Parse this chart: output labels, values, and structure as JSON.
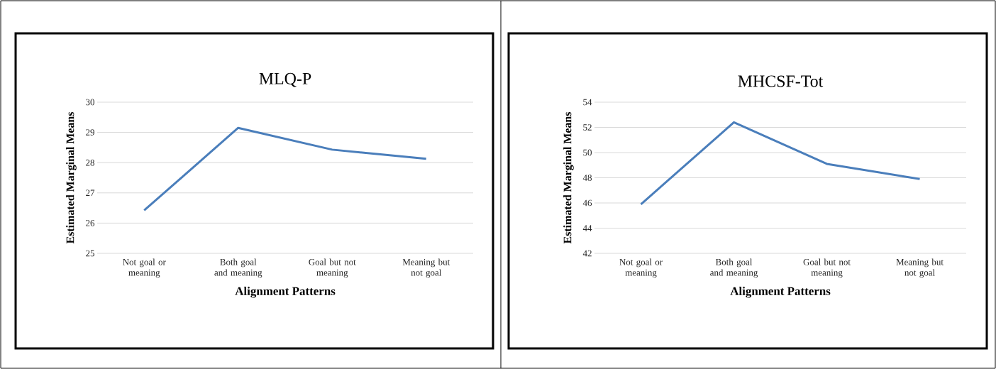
{
  "chart_data": [
    {
      "type": "line",
      "title": "MLQ-P",
      "xlabel": "Alignment Patterns",
      "ylabel": "Estimated Marginal Means",
      "categories": [
        "Not goal or meaning",
        "Both goal and meaning",
        "Goal but not meaning",
        "Meaning but not goal"
      ],
      "series": [
        {
          "color": "#4a7ebb",
          "values": [
            26.42,
            29.15,
            28.43,
            28.13
          ]
        }
      ],
      "ylim": [
        25,
        30
      ],
      "yticks": [
        25,
        26,
        27,
        28,
        29,
        30
      ],
      "grid": "y"
    },
    {
      "type": "line",
      "title": "MHCSF-Tot",
      "xlabel": "Alignment Patterns",
      "ylabel": "Estimated Marginal Means",
      "categories": [
        "Not goal or meaning",
        "Both goal and meaning",
        "Goal but not meaning",
        "Meaning but not goal"
      ],
      "series": [
        {
          "color": "#4a7ebb",
          "values": [
            45.9,
            52.4,
            49.1,
            47.9
          ]
        }
      ],
      "ylim": [
        42,
        54
      ],
      "yticks": [
        42,
        44,
        46,
        48,
        50,
        52,
        54
      ],
      "grid": "y"
    }
  ]
}
